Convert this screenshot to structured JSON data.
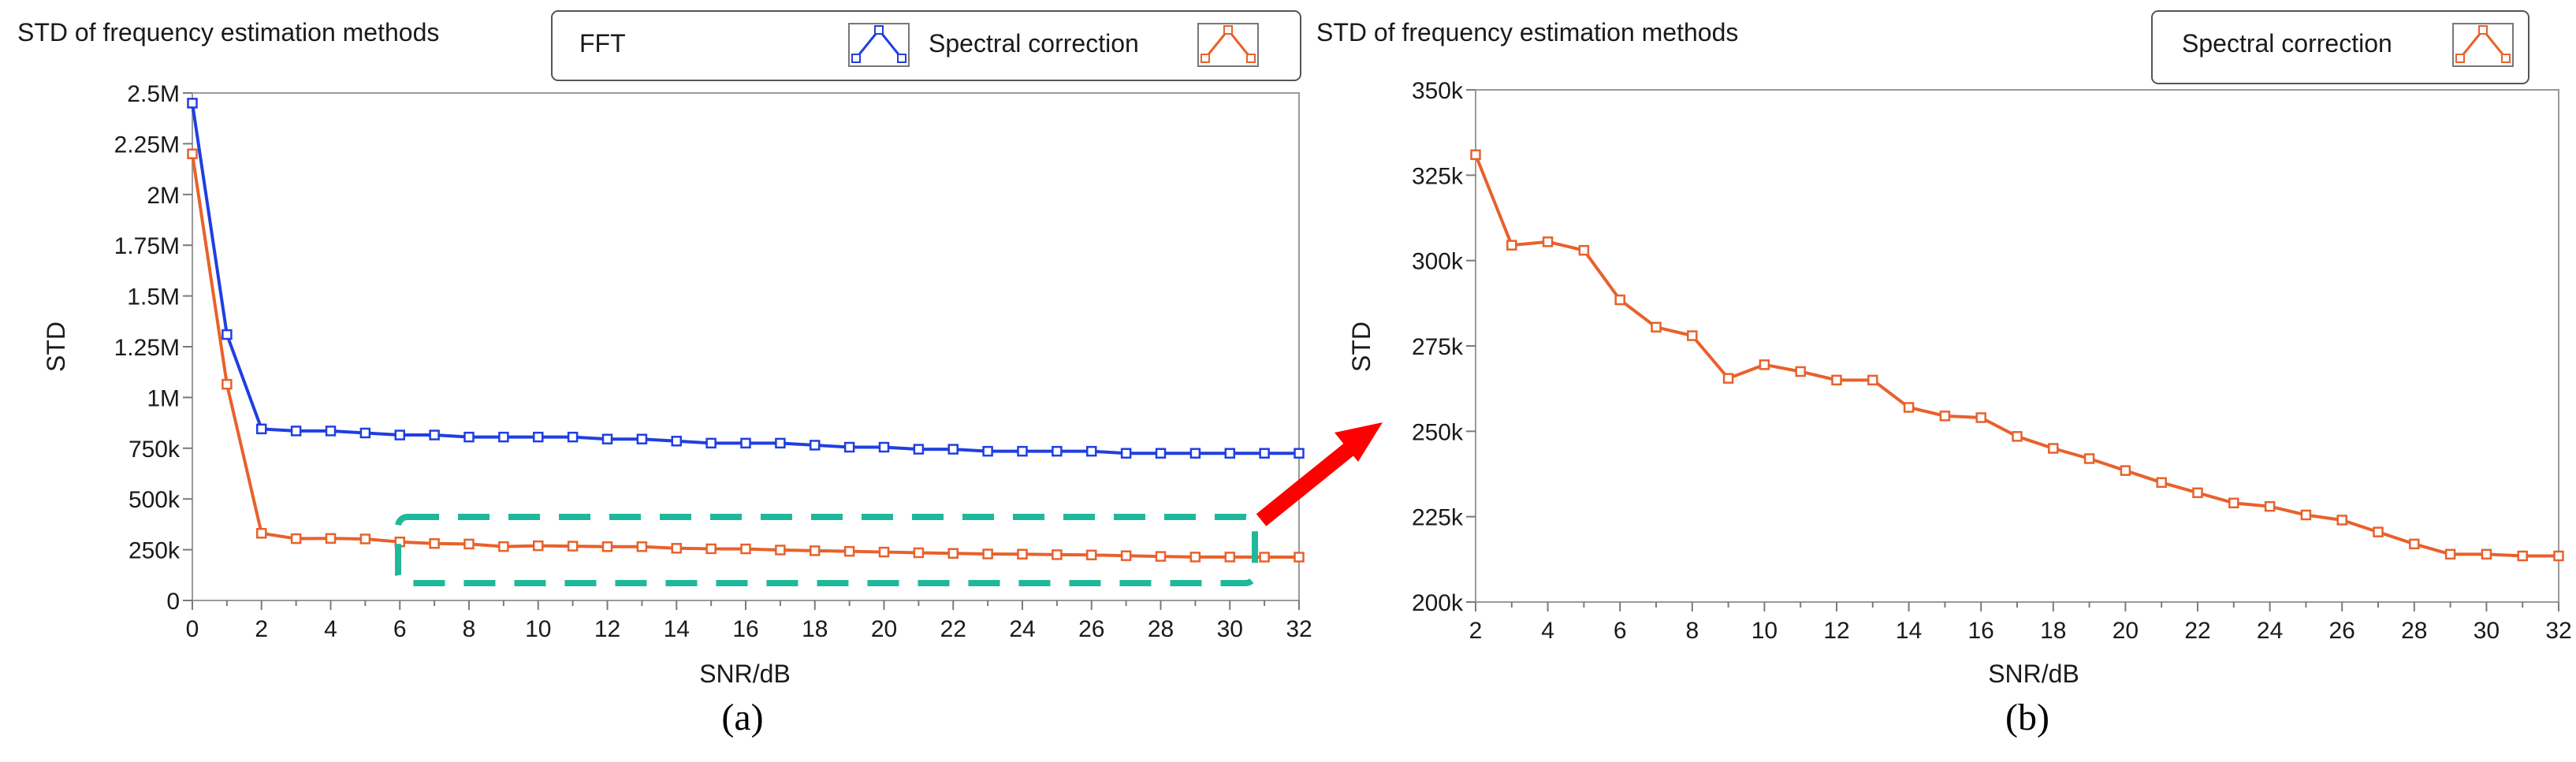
{
  "colors": {
    "fft": "#1f3fe0",
    "spectral": "#e8612c",
    "highlight": "#1fb89a",
    "arrow": "#ff0000",
    "axis": "#7a7a7a"
  },
  "chart_data": [
    {
      "id": "a",
      "type": "line",
      "title": "STD of frequency estimation methods",
      "xlabel": "SNR/dB",
      "ylabel": "STD",
      "caption": "(a)",
      "xlim": [
        0,
        32
      ],
      "ylim": [
        0,
        2500000
      ],
      "xticks": [
        0,
        2,
        4,
        6,
        8,
        10,
        12,
        14,
        16,
        18,
        20,
        22,
        24,
        26,
        28,
        30,
        32
      ],
      "yticks": [
        {
          "value": 0,
          "label": "0"
        },
        {
          "value": 250000,
          "label": "250k"
        },
        {
          "value": 500000,
          "label": "500k"
        },
        {
          "value": 750000,
          "label": "750k"
        },
        {
          "value": 1000000,
          "label": "1M"
        },
        {
          "value": 1250000,
          "label": "1.25M"
        },
        {
          "value": 1500000,
          "label": "1.5M"
        },
        {
          "value": 1750000,
          "label": "1.75M"
        },
        {
          "value": 2000000,
          "label": "2M"
        },
        {
          "value": 2250000,
          "label": "2.25M"
        },
        {
          "value": 2500000,
          "label": "2.5M"
        }
      ],
      "x": [
        0,
        1,
        2,
        3,
        4,
        5,
        6,
        7,
        8,
        9,
        10,
        11,
        12,
        13,
        14,
        15,
        16,
        17,
        18,
        19,
        20,
        21,
        22,
        23,
        24,
        25,
        26,
        27,
        28,
        29,
        30,
        31,
        32
      ],
      "series": [
        {
          "name": "FFT",
          "color_key": "fft",
          "values": [
            2450000,
            1310000,
            845000,
            835000,
            835000,
            825000,
            815000,
            815000,
            805000,
            805000,
            805000,
            805000,
            795000,
            795000,
            785000,
            775000,
            775000,
            775000,
            765000,
            755000,
            755000,
            745000,
            745000,
            735000,
            735000,
            735000,
            735000,
            725000,
            725000,
            725000,
            725000,
            725000,
            725000
          ]
        },
        {
          "name": "Spectral correction",
          "color_key": "spectral",
          "values": [
            2200000,
            1065000,
            331000,
            304500,
            305500,
            303000,
            288500,
            280500,
            278000,
            265500,
            269500,
            267500,
            265000,
            265000,
            257000,
            254500,
            254000,
            248500,
            245000,
            242000,
            238500,
            235000,
            232000,
            229000,
            228000,
            225500,
            224000,
            220500,
            217000,
            214000,
            214000,
            213500,
            213500
          ]
        }
      ],
      "legend": [
        "FFT",
        "Spectral correction"
      ],
      "annotation": "dashed box highlighting Spectral correction curve for SNR 6-31 dB, arrow pointing to panel (b)"
    },
    {
      "id": "b",
      "type": "line",
      "title": "STD of frequency estimation methods",
      "xlabel": "SNR/dB",
      "ylabel": "STD",
      "caption": "(b)",
      "xlim": [
        2,
        32
      ],
      "ylim": [
        200000,
        350000
      ],
      "xticks": [
        2,
        4,
        6,
        8,
        10,
        12,
        14,
        16,
        18,
        20,
        22,
        24,
        26,
        28,
        30,
        32
      ],
      "yticks": [
        {
          "value": 200000,
          "label": "200k"
        },
        {
          "value": 225000,
          "label": "225k"
        },
        {
          "value": 250000,
          "label": "250k"
        },
        {
          "value": 275000,
          "label": "275k"
        },
        {
          "value": 300000,
          "label": "300k"
        },
        {
          "value": 325000,
          "label": "325k"
        },
        {
          "value": 350000,
          "label": "350k"
        }
      ],
      "x": [
        2,
        3,
        4,
        5,
        6,
        7,
        8,
        9,
        10,
        11,
        12,
        13,
        14,
        15,
        16,
        17,
        18,
        19,
        20,
        21,
        22,
        23,
        24,
        25,
        26,
        27,
        28,
        29,
        30,
        31,
        32
      ],
      "series": [
        {
          "name": "Spectral correction",
          "color_key": "spectral",
          "values": [
            331000,
            304500,
            305500,
            303000,
            288500,
            280500,
            278000,
            265500,
            269500,
            267500,
            265000,
            265000,
            257000,
            254500,
            254000,
            248500,
            245000,
            242000,
            238500,
            235000,
            232000,
            229000,
            228000,
            225500,
            224000,
            220500,
            217000,
            214000,
            214000,
            213500,
            213500
          ]
        }
      ],
      "legend": [
        "Spectral correction"
      ]
    }
  ]
}
